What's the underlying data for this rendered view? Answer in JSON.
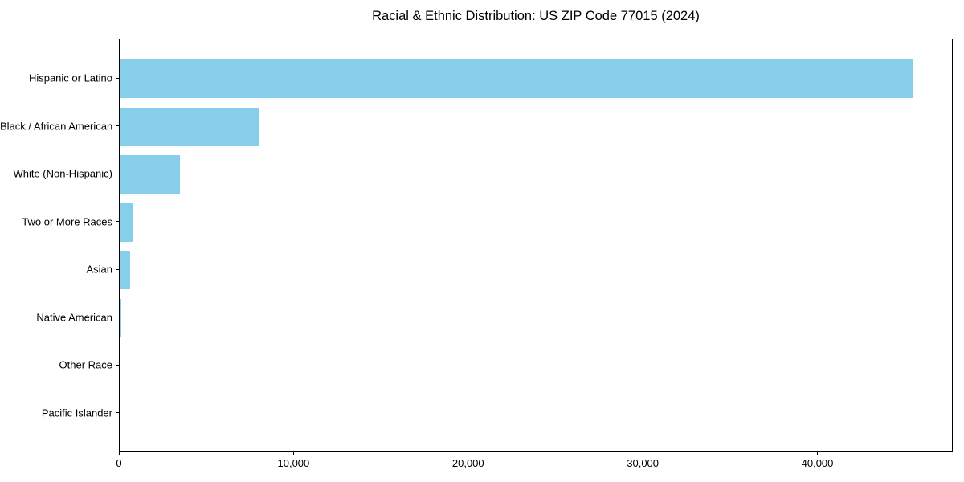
{
  "figure": {
    "title": "Racial & Ethnic Distribution: US ZIP Code 77015 (2024)"
  },
  "chart_data": {
    "type": "bar",
    "orientation": "horizontal",
    "title": "Racial & Ethnic Distribution: US ZIP Code 77015 (2024)",
    "categories": [
      "Hispanic or Latino",
      "Black / African American",
      "White (Non-Hispanic)",
      "Two or More Races",
      "Asian",
      "Native American",
      "Other Race",
      "Pacific Islander"
    ],
    "values": [
      45430,
      8000,
      3430,
      750,
      600,
      85,
      40,
      15
    ],
    "xlabel": "",
    "ylabel": "",
    "xlim": [
      0,
      47750
    ],
    "x_ticks": [
      0,
      10000,
      20000,
      30000,
      40000
    ],
    "x_tick_labels": [
      "0",
      "10,000",
      "20,000",
      "30,000",
      "40,000"
    ],
    "bar_color": "#87CEEB",
    "axis_color": "#000000",
    "text_color": "#000000",
    "background_color": "#ffffff",
    "grid": false,
    "legend": null
  }
}
